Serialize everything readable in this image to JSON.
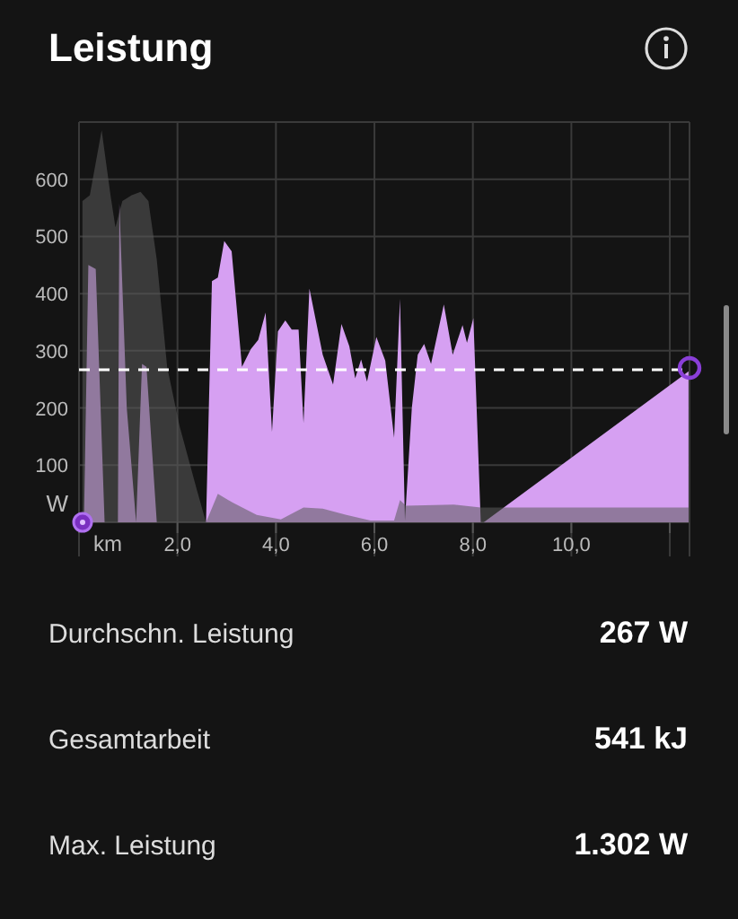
{
  "chart_data": {
    "type": "area",
    "title": "Leistung",
    "xlabel": "km",
    "xlim": [
      0,
      12.4
    ],
    "xticks": [
      {
        "value": 0,
        "label": null
      },
      {
        "value": 2,
        "label": "2,0"
      },
      {
        "value": 4,
        "label": "4,0"
      },
      {
        "value": 6,
        "label": "6,0"
      },
      {
        "value": 8,
        "label": "8,0"
      },
      {
        "value": 10,
        "label": "10,0"
      },
      {
        "value": 12,
        "label": null
      }
    ],
    "ylim": [
      0,
      700
    ],
    "yticks": [
      {
        "value": 0,
        "label": null
      },
      100,
      200,
      300,
      400,
      500,
      600,
      {
        "value": 700,
        "label": null
      }
    ],
    "ylabel": "W",
    "grid": true,
    "series": [
      {
        "color": "#d6a0f2",
        "x": [
          0.1,
          0.19,
          0.34,
          0.52,
          0.79,
          0.82,
          0.97,
          1.16,
          1.28,
          1.37,
          1.58,
          2.58,
          2.7,
          2.82,
          2.95,
          3.1,
          3.31,
          3.49,
          3.64,
          3.79,
          3.92,
          4.04,
          4.19,
          4.32,
          4.46,
          4.56,
          4.68,
          4.95,
          5.16,
          5.33,
          5.49,
          5.61,
          5.73,
          5.85,
          6.04,
          6.22,
          6.4,
          6.52,
          6.62,
          6.76,
          6.88,
          7.01,
          7.15,
          7.41,
          7.59,
          7.79,
          7.88,
          8.01,
          8.16,
          8.22,
          12.38
        ],
        "values": [
          0,
          450,
          443,
          0,
          0,
          557,
          200,
          0,
          277,
          272,
          0,
          0,
          422,
          428,
          492,
          474,
          272,
          303,
          319,
          367,
          158,
          334,
          353,
          337,
          337,
          174,
          409,
          293,
          241,
          347,
          308,
          252,
          285,
          246,
          324,
          283,
          148,
          391,
          3,
          200,
          293,
          312,
          277,
          381,
          293,
          345,
          314,
          357,
          0,
          0,
          264
        ]
      },
      {
        "color": "#5a5a5a",
        "x": [
          0.07,
          0.22,
          0.46,
          0.64,
          0.74,
          0.88,
          1.07,
          1.25,
          1.41,
          1.58,
          1.79,
          2.04,
          2.4,
          2.58,
          2.82,
          3.13,
          3.61,
          4.1,
          4.56,
          4.95,
          5.43,
          5.92,
          6.4,
          6.52,
          6.64,
          7.61,
          8.16,
          12.38
        ],
        "values": [
          562,
          572,
          686,
          572,
          516,
          562,
          572,
          578,
          562,
          459,
          272,
          169,
          55,
          0,
          50,
          34,
          13,
          5,
          26,
          24,
          13,
          3,
          3,
          39,
          29,
          31,
          26,
          26
        ]
      }
    ],
    "ref_lines": [
      {
        "axis": "y",
        "value": 267,
        "color": "#ffffff",
        "line_style": "dashed"
      }
    ],
    "annotations": [
      "Durchschn. Leistung",
      "267 W",
      "Gesamtarbeit",
      "541 kJ",
      "Max. Leistung",
      "1.302 W"
    ]
  }
}
